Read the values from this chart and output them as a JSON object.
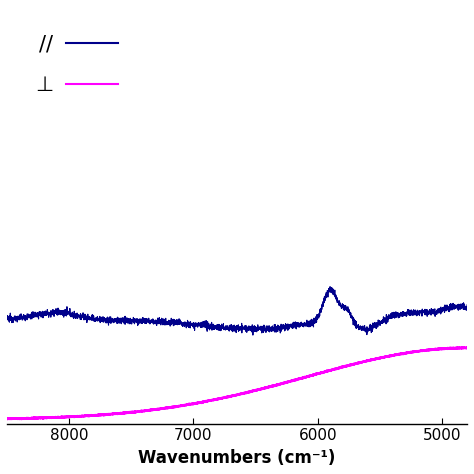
{
  "xlabel": "Wavenumbers (cm⁻¹)",
  "xlabel_fontsize": 12,
  "background_color": "#ffffff",
  "parallel_color": "#00008B",
  "perp_color": "#FF00FF",
  "x_min": 4800,
  "x_max": 8500,
  "legend_parallel": "//",
  "legend_perp": "⊥",
  "xticks": [
    8000,
    7000,
    6000,
    5000
  ],
  "xtick_labels": [
    "8000",
    "7000",
    "6000",
    "5000"
  ]
}
